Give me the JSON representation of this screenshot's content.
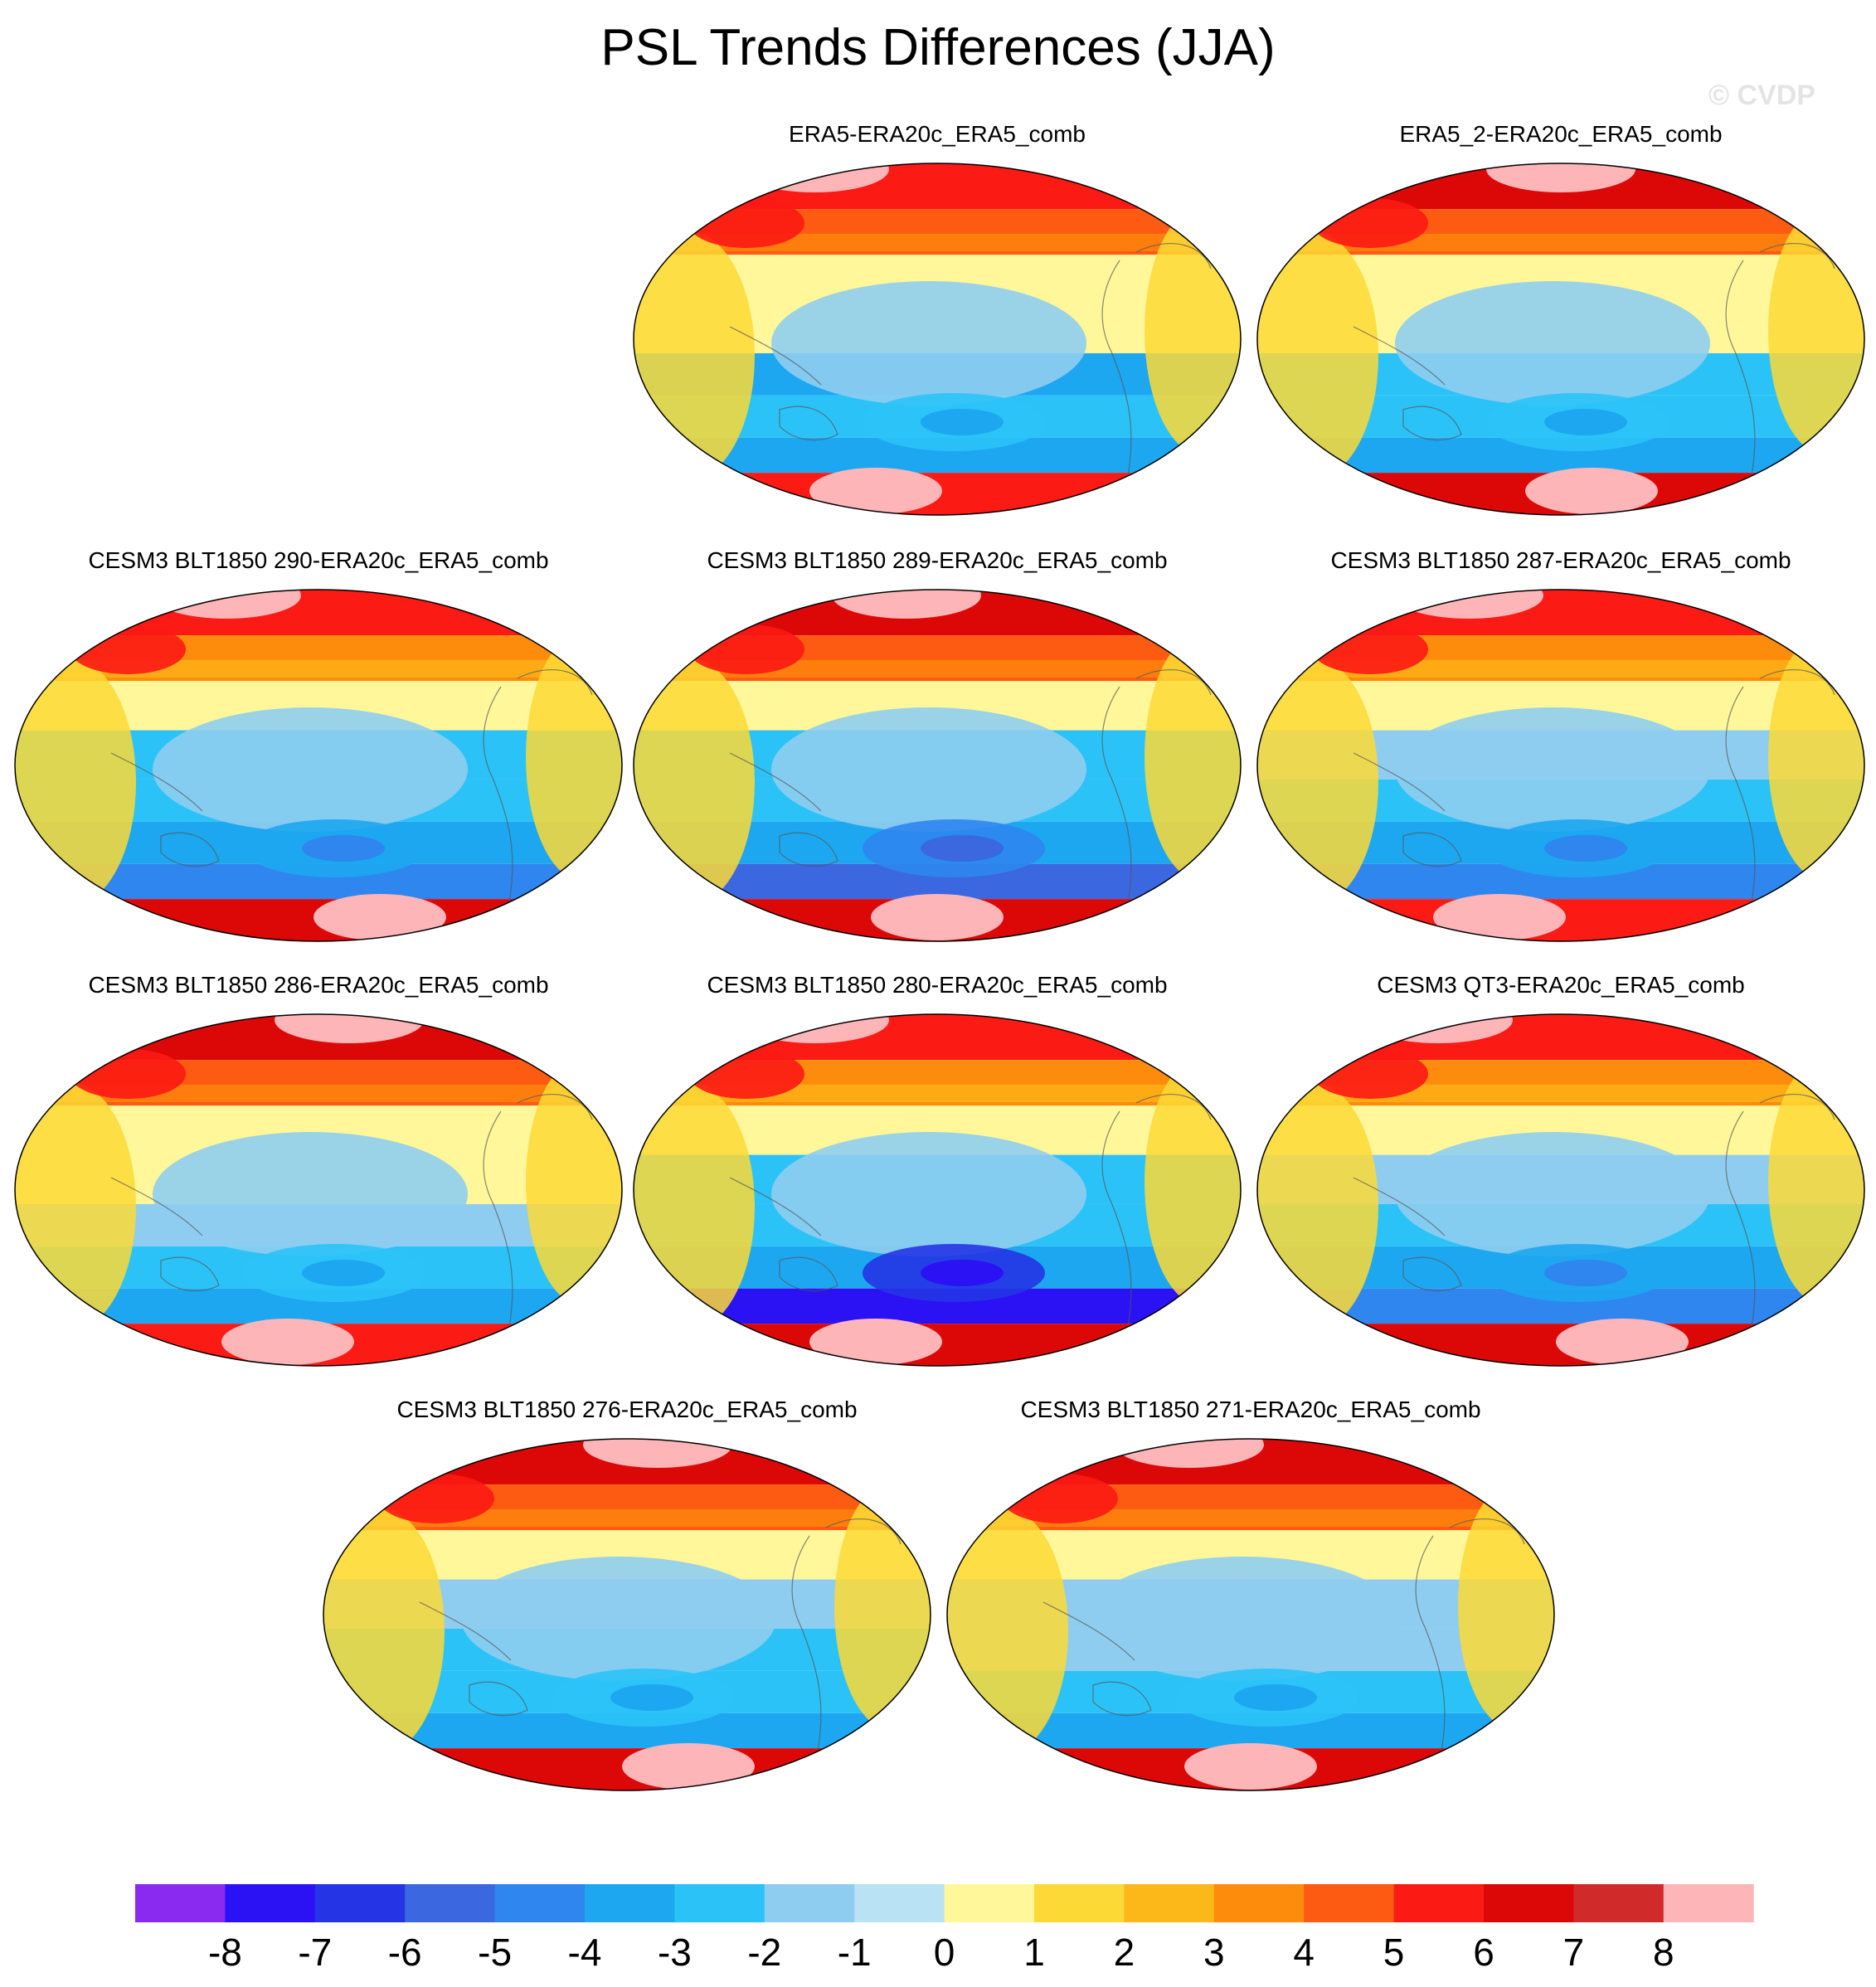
{
  "title": "PSL Trends Differences (JJA)",
  "credit": "© CVDP",
  "chart_data": {
    "type": "heatmap",
    "projection": "Robinson (Pacific-centered global maps)",
    "season": "JJA",
    "variable": "PSL",
    "panels": [
      {
        "label": "ERA5-ERA20c_ERA5_comb",
        "pattern": [
          6,
          5,
          1,
          1,
          -3,
          -2,
          -3,
          6
        ],
        "pole_pink": [
          0.3,
          0.4
        ]
      },
      {
        "label": "ERA5_2-ERA20c_ERA5_comb",
        "pattern": [
          7,
          5,
          1,
          1,
          -2,
          -2,
          -3,
          7
        ],
        "pole_pink": [
          0.5,
          0.55
        ]
      },
      {
        "label": "CESM3 BLT1850 290-ERA20c_ERA5_comb",
        "pattern": [
          6,
          4,
          1,
          -2,
          -2,
          -3,
          -4,
          7
        ],
        "pole_pink": [
          0.35,
          0.6
        ]
      },
      {
        "label": "CESM3 BLT1850 289-ERA20c_ERA5_comb",
        "pattern": [
          7,
          5,
          1,
          -2,
          -2,
          -3,
          -5,
          7
        ],
        "pole_pink": [
          0.45,
          0.5
        ]
      },
      {
        "label": "CESM3 BLT1850 287-ERA20c_ERA5_comb",
        "pattern": [
          6,
          4,
          1,
          -1,
          -2,
          -3,
          -4,
          6
        ],
        "pole_pink": [
          0.35,
          0.4
        ]
      },
      {
        "label": "CESM3 BLT1850 286-ERA20c_ERA5_comb",
        "pattern": [
          7,
          5,
          1,
          1,
          -1,
          -2,
          -3,
          6
        ],
        "pole_pink": [
          0.55,
          0.45
        ]
      },
      {
        "label": "CESM3 BLT1850 280-ERA20c_ERA5_comb",
        "pattern": [
          6,
          4,
          1,
          -2,
          -2,
          -3,
          -7,
          7
        ],
        "pole_pink": [
          0.3,
          0.4
        ]
      },
      {
        "label": "CESM3 QT3-ERA20c_ERA5_comb",
        "pattern": [
          6,
          4,
          1,
          -1,
          -2,
          -3,
          -4,
          7
        ],
        "pole_pink": [
          0.3,
          0.6
        ]
      },
      {
        "label": "CESM3 BLT1850 276-ERA20c_ERA5_comb",
        "pattern": [
          7,
          5,
          1,
          -1,
          -2,
          -2,
          -3,
          7
        ],
        "pole_pink": [
          0.55,
          0.6
        ]
      },
      {
        "label": "CESM3 BLT1850 271-ERA20c_ERA5_comb",
        "pattern": [
          7,
          5,
          1,
          -1,
          -1,
          -2,
          -3,
          7
        ],
        "pole_pink": [
          0.4,
          0.5
        ]
      }
    ],
    "colorbar": {
      "labels": [
        "-8",
        "-7",
        "-6",
        "-5",
        "-4",
        "-3",
        "-2",
        "-1",
        "0",
        "1",
        "2",
        "3",
        "4",
        "5",
        "6",
        "7",
        "8"
      ],
      "bins": [
        {
          "range": "< -8",
          "color": "#8a29f0"
        },
        {
          "range": "-8 to -7",
          "color": "#2a12f5"
        },
        {
          "range": "-7 to -6",
          "color": "#2535e6"
        },
        {
          "range": "-6 to -5",
          "color": "#3b67e0"
        },
        {
          "range": "-5 to -4",
          "color": "#2e86ee"
        },
        {
          "range": "-4 to -3",
          "color": "#1da7f0"
        },
        {
          "range": "-3 to -2",
          "color": "#2bc3f7"
        },
        {
          "range": "-2 to -1",
          "color": "#8fcdf0"
        },
        {
          "range": "-1 to 0",
          "color": "#b9e2f4"
        },
        {
          "range": "0 to 1",
          "color": "#fff79a"
        },
        {
          "range": "1 to 2",
          "color": "#fdd935"
        },
        {
          "range": "2 to 3",
          "color": "#fcb719"
        },
        {
          "range": "3 to 4",
          "color": "#fd8c0c"
        },
        {
          "range": "4 to 5",
          "color": "#fd5a12"
        },
        {
          "range": "5 to 6",
          "color": "#fc1a14"
        },
        {
          "range": "6 to 7",
          "color": "#dc0808"
        },
        {
          "range": "7 to 8",
          "color": "#d12a2a"
        },
        {
          "range": "> 8",
          "color": "#feb5b8"
        }
      ]
    }
  }
}
